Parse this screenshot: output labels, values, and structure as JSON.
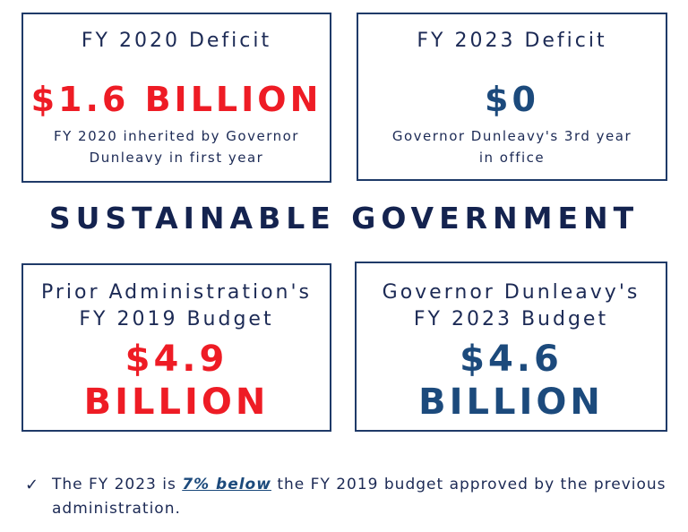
{
  "card_fy2020": {
    "title": "FY 2020 Deficit",
    "figure": "$1.6 BILLION",
    "note_line1": "FY 2020 inherited by Governor",
    "note_line2": "Dunleavy in first year"
  },
  "card_fy2023": {
    "title": "FY 2023 Deficit",
    "figure": "$0",
    "note_line1": "Governor Dunleavy's 3rd year",
    "note_line2": "in office"
  },
  "headline": "SUSTAINABLE GOVERNMENT",
  "card_prior": {
    "title_line1": "Prior Administration's",
    "title_line2": "FY 2019 Budget",
    "figure_line1": "$4.9",
    "figure_line2": "BILLION"
  },
  "card_dunleavy": {
    "title_line1": "Governor Dunleavy's",
    "title_line2": "FY 2023 Budget",
    "figure_line1": "$4.6",
    "figure_line2": "BILLION"
  },
  "footnote": {
    "check": "✓",
    "text_before": "The FY 2023 is ",
    "emphasis": "7% below",
    "text_after": " the FY 2019 budget approved by the previous administration."
  },
  "colors": {
    "red": "#ee1c25",
    "blue": "#1c4a7c",
    "navy": "#1c2a55",
    "border": "#1f3a68"
  }
}
